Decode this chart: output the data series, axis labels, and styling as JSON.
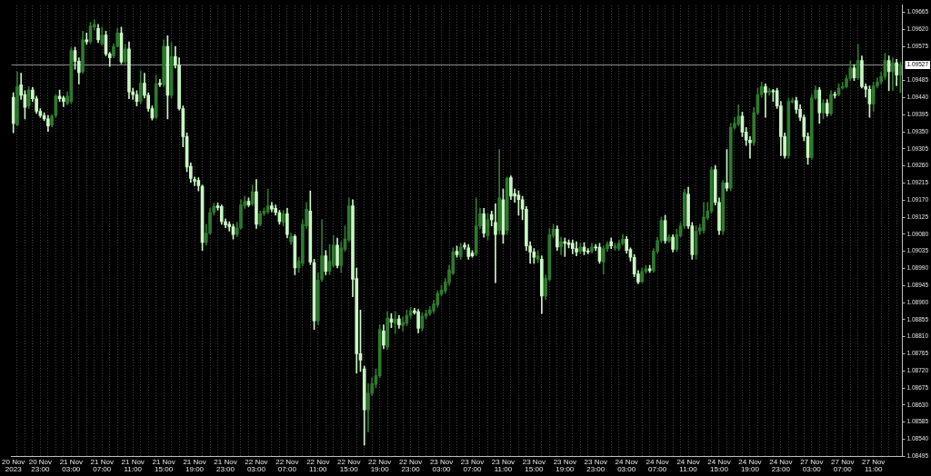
{
  "chart_data": {
    "type": "candlestick",
    "categories": [
      "20 Nov 2023",
      null,
      null,
      null,
      null,
      null,
      null,
      "20 Nov 23:00",
      null,
      null,
      null,
      null,
      null,
      null,
      null,
      "21 Nov 03:00",
      null,
      null,
      null,
      null,
      null,
      null,
      null,
      "21 Nov 07:00",
      null,
      null,
      null,
      null,
      null,
      null,
      null,
      "21 Nov 11:00",
      null,
      null,
      null,
      null,
      null,
      null,
      null,
      "21 Nov 15:00",
      null,
      null,
      null,
      null,
      null,
      null,
      null,
      "21 Nov 19:00",
      null,
      null,
      null,
      null,
      null,
      null,
      null,
      "21 Nov 23:00",
      null,
      null,
      null,
      null,
      null,
      null,
      null,
      "22 Nov 03:00",
      null,
      null,
      null,
      null,
      null,
      null,
      null,
      "22 Nov 07:00",
      null,
      null,
      null,
      null,
      null,
      null,
      null,
      "22 Nov 11:00",
      null,
      null,
      null,
      null,
      null,
      null,
      null,
      "22 Nov 15:00",
      null,
      null,
      null,
      null,
      null,
      null,
      null,
      "22 Nov 19:00",
      null,
      null,
      null,
      null,
      null,
      null,
      null,
      "22 Nov 23:00",
      null,
      null,
      null,
      null,
      null,
      null,
      null,
      "23 Nov 03:00",
      null,
      null,
      null,
      null,
      null,
      null,
      null,
      "23 Nov 07:00",
      null,
      null,
      null,
      null,
      null,
      null,
      null,
      "23 Nov 11:00",
      null,
      null,
      null,
      null,
      null,
      null,
      null,
      "23 Nov 15:00",
      null,
      null,
      null,
      null,
      null,
      null,
      null,
      "23 Nov 19:00",
      null,
      null,
      null,
      null,
      null,
      null,
      null,
      "23 Nov 23:00",
      null,
      null,
      null,
      null,
      null,
      null,
      null,
      "24 Nov 03:00",
      null,
      null,
      null,
      null,
      null,
      null,
      null,
      "24 Nov 07:00",
      null,
      null,
      null,
      null,
      null,
      null,
      null,
      "24 Nov 11:00",
      null,
      null,
      null,
      null,
      null,
      null,
      null,
      "24 Nov 15:00",
      null,
      null,
      null,
      null,
      null,
      null,
      null,
      "24 Nov 19:00",
      null,
      null,
      null,
      null,
      null,
      null,
      null,
      "24 Nov 23:00",
      null,
      null,
      null,
      null,
      null,
      null,
      null,
      "27 Nov 03:00",
      null,
      null,
      null,
      null,
      null,
      null,
      null,
      "27 Nov 07:00",
      null,
      null,
      null,
      null,
      null,
      null,
      null,
      "27 Nov 11:00",
      null,
      null,
      null,
      null,
      null,
      null,
      null
    ],
    "ohlc": [
      [
        1.09441,
        1.09453,
        1.09347,
        1.09372
      ],
      [
        1.09368,
        1.09508,
        1.09365,
        1.09469
      ],
      [
        1.09474,
        1.09504,
        1.09435,
        1.09446
      ],
      [
        1.09448,
        1.09458,
        1.09384,
        1.09414
      ],
      [
        1.09418,
        1.09469,
        1.09411,
        1.0946
      ],
      [
        1.0946,
        1.09467,
        1.0943,
        1.09437
      ],
      [
        1.09437,
        1.09444,
        1.09398,
        1.09404
      ],
      [
        1.09404,
        1.09411,
        1.09388,
        1.09393
      ],
      [
        1.09393,
        1.094,
        1.09379,
        1.09384
      ],
      [
        1.09384,
        1.09393,
        1.09351,
        1.09365
      ],
      [
        1.09368,
        1.09395,
        1.09363,
        1.09391
      ],
      [
        1.09393,
        1.09448,
        1.09388,
        1.09444
      ],
      [
        1.09444,
        1.0946,
        1.0943,
        1.09437
      ],
      [
        1.09439,
        1.09444,
        1.09416,
        1.0943
      ],
      [
        1.09425,
        1.09455,
        1.09421,
        1.09444
      ],
      [
        1.0943,
        1.09571,
        1.09425,
        1.09564
      ],
      [
        1.09564,
        1.09573,
        1.09515,
        1.09536
      ],
      [
        1.09536,
        1.09545,
        1.09476,
        1.09506
      ],
      [
        1.09508,
        1.09615,
        1.09504,
        1.09592
      ],
      [
        1.09592,
        1.0961,
        1.0958,
        1.09587
      ],
      [
        1.09587,
        1.09638,
        1.09582,
        1.09629
      ],
      [
        1.09626,
        1.09645,
        1.09619,
        1.09633
      ],
      [
        1.09622,
        1.09633,
        1.09585,
        1.09592
      ],
      [
        1.09582,
        1.09626,
        1.09578,
        1.09605
      ],
      [
        1.09605,
        1.09615,
        1.0955,
        1.09555
      ],
      [
        1.09555,
        1.09559,
        1.09522,
        1.09545
      ],
      [
        1.0955,
        1.09582,
        1.09545,
        1.09575
      ],
      [
        1.09575,
        1.09622,
        1.09573,
        1.0961
      ],
      [
        1.0961,
        1.09626,
        1.09529,
        1.09534
      ],
      [
        1.09534,
        1.0958,
        1.09527,
        1.09568
      ],
      [
        1.09568,
        1.09587,
        1.09437,
        1.09455
      ],
      [
        1.09455,
        1.09465,
        1.09435,
        1.09448
      ],
      [
        1.09448,
        1.09458,
        1.09418,
        1.0943
      ],
      [
        1.0943,
        1.09511,
        1.09425,
        1.09478
      ],
      [
        1.09478,
        1.09504,
        1.09439,
        1.09446
      ],
      [
        1.09446,
        1.09453,
        1.09404,
        1.09411
      ],
      [
        1.09411,
        1.09418,
        1.09381,
        1.09386
      ],
      [
        1.09388,
        1.09499,
        1.09384,
        1.09476
      ],
      [
        1.09478,
        1.09488,
        1.09469,
        1.09474
      ],
      [
        1.09474,
        1.09592,
        1.09469,
        1.09575
      ],
      [
        1.09575,
        1.09603,
        1.09384,
        1.09446
      ],
      [
        1.09446,
        1.09585,
        1.09439,
        1.09548
      ],
      [
        1.09548,
        1.09575,
        1.09518,
        1.09525
      ],
      [
        1.09525,
        1.09545,
        1.09407,
        1.09411
      ],
      [
        1.09411,
        1.09418,
        1.0931,
        1.09337
      ],
      [
        1.09337,
        1.09347,
        1.09245,
        1.09257
      ],
      [
        1.09259,
        1.09268,
        1.09217,
        1.09227
      ],
      [
        1.09224,
        1.09231,
        1.09208,
        1.0922
      ],
      [
        1.09222,
        1.09229,
        1.09194,
        1.09208
      ],
      [
        1.09206,
        1.0921,
        1.09037,
        1.09058
      ],
      [
        1.09058,
        1.09106,
        1.09051,
        1.09083
      ],
      [
        1.09083,
        1.09148,
        1.09079,
        1.09137
      ],
      [
        1.09137,
        1.09162,
        1.0913,
        1.09153
      ],
      [
        1.09155,
        1.09162,
        1.09143,
        1.0915
      ],
      [
        1.09153,
        1.09157,
        1.09106,
        1.09113
      ],
      [
        1.09113,
        1.0912,
        1.09097,
        1.09104
      ],
      [
        1.09106,
        1.09113,
        1.09088,
        1.091
      ],
      [
        1.091,
        1.09106,
        1.09067,
        1.09079
      ],
      [
        1.09079,
        1.09111,
        1.09074,
        1.09097
      ],
      [
        1.09097,
        1.09171,
        1.09093,
        1.09157
      ],
      [
        1.09155,
        1.0918,
        1.09148,
        1.09167
      ],
      [
        1.09167,
        1.09176,
        1.09153,
        1.09157
      ],
      [
        1.0916,
        1.0921,
        1.09155,
        1.09192
      ],
      [
        1.09192,
        1.09224,
        1.09095,
        1.09106
      ],
      [
        1.09106,
        1.09141,
        1.09102,
        1.09134
      ],
      [
        1.09134,
        1.09148,
        1.0913,
        1.09141
      ],
      [
        1.09139,
        1.09199,
        1.09134,
        1.09155
      ],
      [
        1.09155,
        1.09164,
        1.09139,
        1.09146
      ],
      [
        1.09148,
        1.09157,
        1.0913,
        1.09137
      ],
      [
        1.09137,
        1.09143,
        1.09106,
        1.09113
      ],
      [
        1.09111,
        1.09143,
        1.09102,
        1.09134
      ],
      [
        1.09134,
        1.09148,
        1.0907,
        1.09079
      ],
      [
        1.0906,
        1.09083,
        1.09053,
        1.09074
      ],
      [
        1.09074,
        1.09079,
        1.08973,
        1.08991
      ],
      [
        1.08991,
        1.09019,
        1.08979,
        1.09009
      ],
      [
        1.09003,
        1.09118,
        1.08996,
        1.09106
      ],
      [
        1.09102,
        1.09164,
        1.09095,
        1.09146
      ],
      [
        1.09141,
        1.09194,
        1.09,
        1.09007
      ],
      [
        1.09005,
        1.09014,
        1.08829,
        1.08852
      ],
      [
        1.08852,
        1.08979,
        1.08841,
        1.08959
      ],
      [
        1.08961,
        1.09118,
        1.08956,
        1.09023
      ],
      [
        1.09023,
        1.09037,
        1.08973,
        1.08982
      ],
      [
        1.08982,
        1.09053,
        1.08973,
        1.09009
      ],
      [
        1.08998,
        1.09076,
        1.08993,
        1.09051
      ],
      [
        1.09051,
        1.0907,
        1.08991,
        1.08998
      ],
      [
        1.08998,
        1.0906,
        1.08979,
        1.09044
      ],
      [
        1.0904,
        1.09102,
        1.09035,
        1.09067
      ],
      [
        1.09065,
        1.09176,
        1.0906,
        1.09155
      ],
      [
        1.09155,
        1.09171,
        1.08915,
        1.08961
      ],
      [
        1.08963,
        1.08991,
        1.08714,
        1.08765
      ],
      [
        1.08765,
        1.0888,
        1.08718,
        1.08748
      ],
      [
        1.08725,
        1.08732,
        1.08524,
        1.08617
      ],
      [
        1.08617,
        1.08686,
        1.08559,
        1.08661
      ],
      [
        1.08661,
        1.08702,
        1.08654,
        1.08686
      ],
      [
        1.08684,
        1.08725,
        1.08675,
        1.08707
      ],
      [
        1.08707,
        1.08841,
        1.08702,
        1.08829
      ],
      [
        1.08825,
        1.08841,
        1.08778,
        1.08788
      ],
      [
        1.08783,
        1.08876,
        1.08776,
        1.08859
      ],
      [
        1.08857,
        1.08871,
        1.08834,
        1.08848
      ],
      [
        1.08845,
        1.08876,
        1.08818,
        1.08857
      ],
      [
        1.08857,
        1.08866,
        1.08832,
        1.08841
      ],
      [
        1.08839,
        1.08862,
        1.08825,
        1.08848
      ],
      [
        1.08845,
        1.0888,
        1.08839,
        1.08866
      ],
      [
        1.08866,
        1.08887,
        1.08859,
        1.08878
      ],
      [
        1.08878,
        1.08885,
        1.08869,
        1.08873
      ],
      [
        1.08876,
        1.08882,
        1.0882,
        1.08832
      ],
      [
        1.08832,
        1.08873,
        1.08825,
        1.08864
      ],
      [
        1.08864,
        1.0888,
        1.08857,
        1.08871
      ],
      [
        1.08871,
        1.08889,
        1.08866,
        1.0888
      ],
      [
        1.08878,
        1.08906,
        1.08873,
        1.08896
      ],
      [
        1.08894,
        1.08931,
        1.08887,
        1.08924
      ],
      [
        1.08922,
        1.08945,
        1.08917,
        1.08933
      ],
      [
        1.08931,
        1.08963,
        1.08924,
        1.08954
      ],
      [
        1.08952,
        1.08998,
        1.08945,
        1.08986
      ],
      [
        1.08977,
        1.09044,
        1.08973,
        1.09033
      ],
      [
        1.09035,
        1.09049,
        1.09019,
        1.09026
      ],
      [
        1.09021,
        1.09056,
        1.09014,
        1.09046
      ],
      [
        1.09051,
        1.09058,
        1.0904,
        1.09046
      ],
      [
        1.09044,
        1.09053,
        1.09014,
        1.09021
      ],
      [
        1.0903,
        1.09037,
        1.09019,
        1.09023
      ],
      [
        1.09028,
        1.09176,
        1.09023,
        1.09102
      ],
      [
        1.09102,
        1.09148,
        1.09095,
        1.09134
      ],
      [
        1.09134,
        1.09148,
        1.09072,
        1.09083
      ],
      [
        1.09076,
        1.09134,
        1.09065,
        1.09118
      ],
      [
        1.09132,
        1.09141,
        1.09102,
        1.09118
      ],
      [
        1.09111,
        1.0916,
        1.08952,
        1.09079
      ],
      [
        1.0909,
        1.09303,
        1.09079,
        1.09176
      ],
      [
        1.09171,
        1.09199,
        1.09056,
        1.09079
      ],
      [
        1.0909,
        1.09231,
        1.09079,
        1.09227
      ],
      [
        1.09229,
        1.09234,
        1.09171,
        1.0918
      ],
      [
        1.09187,
        1.09199,
        1.09164,
        1.0918
      ],
      [
        1.09183,
        1.09194,
        1.0913,
        1.09171
      ],
      [
        1.09171,
        1.0918,
        1.09118,
        1.09146
      ],
      [
        1.09146,
        1.09153,
        1.09037,
        1.09049
      ],
      [
        1.09049,
        1.0906,
        1.09003,
        1.09033
      ],
      [
        1.09033,
        1.09042,
        1.09003,
        1.09019
      ],
      [
        1.09014,
        1.09037,
        1.09005,
        1.09023
      ],
      [
        1.09014,
        1.09023,
        1.08871,
        1.08917
      ],
      [
        1.08917,
        1.08973,
        1.08908,
        1.08963
      ],
      [
        1.08961,
        1.09095,
        1.08956,
        1.09079
      ],
      [
        1.09076,
        1.09106,
        1.0907,
        1.09093
      ],
      [
        1.09093,
        1.09102,
        1.09037,
        1.09046
      ],
      [
        1.09046,
        1.09072,
        1.09026,
        1.0906
      ],
      [
        1.0906,
        1.0907,
        1.09021,
        1.09056
      ],
      [
        1.09058,
        1.09065,
        1.09044,
        1.09053
      ],
      [
        1.09056,
        1.09065,
        1.09028,
        1.09042
      ],
      [
        1.09042,
        1.0906,
        1.09023,
        1.09033
      ],
      [
        1.09035,
        1.09056,
        1.09028,
        1.09046
      ],
      [
        1.09046,
        1.09058,
        1.09026,
        1.09035
      ],
      [
        1.09035,
        1.09042,
        1.09028,
        1.09033
      ],
      [
        1.09035,
        1.09056,
        1.0903,
        1.09046
      ],
      [
        1.09046,
        1.09053,
        1.09037,
        1.09044
      ],
      [
        1.09046,
        1.09056,
        1.09003,
        1.09009
      ],
      [
        1.09007,
        1.09049,
        1.08975,
        1.09042
      ],
      [
        1.09042,
        1.0906,
        1.09035,
        1.09053
      ],
      [
        1.0906,
        1.0907,
        1.09042,
        1.09049
      ],
      [
        1.09044,
        1.09056,
        1.09037,
        1.09049
      ],
      [
        1.09042,
        1.09065,
        1.09037,
        1.09056
      ],
      [
        1.09056,
        1.09079,
        1.09051,
        1.09067
      ],
      [
        1.09067,
        1.09074,
        1.0903,
        1.09037
      ],
      [
        1.0904,
        1.09044,
        1.09009,
        1.09019
      ],
      [
        1.09019,
        1.09026,
        1.08968,
        1.08975
      ],
      [
        1.08975,
        1.08984,
        1.08949,
        1.08954
      ],
      [
        1.08954,
        1.08991,
        1.08952,
        1.08982
      ],
      [
        1.08982,
        1.08998,
        1.08977,
        1.08989
      ],
      [
        1.08989,
        1.08998,
        1.08979,
        1.08984
      ],
      [
        1.08984,
        1.09042,
        1.08979,
        1.09035
      ],
      [
        1.09035,
        1.09072,
        1.0903,
        1.09063
      ],
      [
        1.09063,
        1.09125,
        1.09058,
        1.09116
      ],
      [
        1.09116,
        1.0913,
        1.09056,
        1.09063
      ],
      [
        1.09063,
        1.09079,
        1.09058,
        1.09072
      ],
      [
        1.09072,
        1.09079,
        1.09033,
        1.0904
      ],
      [
        1.0904,
        1.09093,
        1.09035,
        1.09079
      ],
      [
        1.09076,
        1.09111,
        1.09072,
        1.09102
      ],
      [
        1.09102,
        1.09199,
        1.09095,
        1.0919
      ],
      [
        1.09185,
        1.09204,
        1.09095,
        1.09102
      ],
      [
        1.09102,
        1.09111,
        1.09014,
        1.09026
      ],
      [
        1.09026,
        1.09102,
        1.09014,
        1.09088
      ],
      [
        1.09088,
        1.09106,
        1.09079,
        1.09097
      ],
      [
        1.0909,
        1.09164,
        1.09083,
        1.09125
      ],
      [
        1.09123,
        1.09164,
        1.09118,
        1.09141
      ],
      [
        1.09141,
        1.09257,
        1.09134,
        1.0925
      ],
      [
        1.0925,
        1.09261,
        1.09157,
        1.09164
      ],
      [
        1.09164,
        1.09176,
        1.09079,
        1.0909
      ],
      [
        1.09088,
        1.09222,
        1.09079,
        1.09215
      ],
      [
        1.09215,
        1.09303,
        1.09194,
        1.09201
      ],
      [
        1.09201,
        1.09372,
        1.09194,
        1.09361
      ],
      [
        1.09361,
        1.09388,
        1.09356,
        1.09372
      ],
      [
        1.0937,
        1.09421,
        1.09365,
        1.09391
      ],
      [
        1.09391,
        1.09402,
        1.09337,
        1.09349
      ],
      [
        1.09349,
        1.09361,
        1.09314,
        1.09328
      ],
      [
        1.09328,
        1.09337,
        1.0928,
        1.09321
      ],
      [
        1.09321,
        1.09414,
        1.09314,
        1.094
      ],
      [
        1.094,
        1.09465,
        1.09395,
        1.09448
      ],
      [
        1.09448,
        1.09481,
        1.09441,
        1.09469
      ],
      [
        1.09469,
        1.09476,
        1.09388,
        1.09453
      ],
      [
        1.09453,
        1.09465,
        1.09446,
        1.09458
      ],
      [
        1.09458,
        1.09462,
        1.0943,
        1.09455
      ],
      [
        1.09458,
        1.09465,
        1.09411,
        1.09418
      ],
      [
        1.09418,
        1.0943,
        1.09287,
        1.09337
      ],
      [
        1.09337,
        1.09347,
        1.0928,
        1.09287
      ],
      [
        1.09287,
        1.09439,
        1.0928,
        1.0943
      ],
      [
        1.09428,
        1.09439,
        1.09425,
        1.09432
      ],
      [
        1.09432,
        1.09441,
        1.09398,
        1.09409
      ],
      [
        1.09409,
        1.09421,
        1.09379,
        1.09388
      ],
      [
        1.09388,
        1.09395,
        1.09326,
        1.09337
      ],
      [
        1.09337,
        1.09347,
        1.09264,
        1.09282
      ],
      [
        1.09282,
        1.09448,
        1.09277,
        1.09439
      ],
      [
        1.09439,
        1.09471,
        1.09435,
        1.0946
      ],
      [
        1.0946,
        1.09467,
        1.09372,
        1.094
      ],
      [
        1.094,
        1.09435,
        1.09384,
        1.09425
      ],
      [
        1.09425,
        1.09435,
        1.09391,
        1.09398
      ],
      [
        1.09398,
        1.09458,
        1.09393,
        1.09448
      ],
      [
        1.09448,
        1.09455,
        1.09439,
        1.09446
      ],
      [
        1.09448,
        1.09476,
        1.09444,
        1.09465
      ],
      [
        1.09465,
        1.09481,
        1.09462,
        1.09469
      ],
      [
        1.09469,
        1.09499,
        1.09465,
        1.0949
      ],
      [
        1.0949,
        1.09536,
        1.09485,
        1.09518
      ],
      [
        1.09518,
        1.09527,
        1.09485,
        1.09492
      ],
      [
        1.09492,
        1.0958,
        1.09488,
        1.09538
      ],
      [
        1.09538,
        1.0955,
        1.09465,
        1.09469
      ],
      [
        1.09469,
        1.09476,
        1.09441,
        1.09462
      ],
      [
        1.09462,
        1.09471,
        1.09388,
        1.09423
      ],
      [
        1.09423,
        1.09481,
        1.09404,
        1.09471
      ],
      [
        1.09471,
        1.09492,
        1.09465,
        1.09481
      ],
      [
        1.09481,
        1.09508,
        1.09476,
        1.09495
      ],
      [
        1.09495,
        1.09557,
        1.09488,
        1.09538
      ],
      [
        1.09538,
        1.0955,
        1.09458,
        1.09508
      ],
      [
        1.09508,
        1.09545,
        1.09458,
        1.09532
      ],
      [
        1.09532,
        1.09541,
        1.09471,
        1.09499
      ],
      [
        1.09499,
        1.09534,
        1.09453,
        1.09527
      ]
    ],
    "colors": [
      "#c9f7c3",
      "#2e7a2e",
      "#c9f7c3",
      "#c9f7c3",
      "#2e7a2e",
      "#c9f7c3",
      "#c9f7c3",
      "#c9f7c3",
      "#c9f7c3",
      "#c9f7c3",
      "#2e7a2e",
      "#2e7a2e",
      "#c9f7c3",
      "#c9f7c3",
      "#2e7a2e",
      "#2e7a2e",
      "#c9f7c3",
      "#c9f7c3",
      "#2e7a2e",
      "#c9f7c3",
      "#2e7a2e",
      "#2e7a2e",
      "#c9f7c3",
      "#2e7a2e",
      "#c9f7c3",
      "#c9f7c3",
      "#2e7a2e",
      "#2e7a2e",
      "#c9f7c3",
      "#2e7a2e",
      "#c9f7c3",
      "#c9f7c3",
      "#c9f7c3",
      "#2e7a2e",
      "#c9f7c3",
      "#c9f7c3",
      "#c9f7c3",
      "#2e7a2e",
      "#c9f7c3",
      "#2e7a2e",
      "#c9f7c3",
      "#2e7a2e",
      "#c9f7c3",
      "#c9f7c3",
      "#c9f7c3",
      "#c9f7c3",
      "#c9f7c3",
      "#c9f7c3",
      "#c9f7c3",
      "#c9f7c3",
      "#2e7a2e",
      "#2e7a2e",
      "#2e7a2e",
      "#c9f7c3",
      "#c9f7c3",
      "#c9f7c3",
      "#c9f7c3",
      "#c9f7c3",
      "#2e7a2e",
      "#2e7a2e",
      "#2e7a2e",
      "#c9f7c3",
      "#2e7a2e",
      "#c9f7c3",
      "#2e7a2e",
      "#2e7a2e",
      "#2e7a2e",
      "#c9f7c3",
      "#c9f7c3",
      "#c9f7c3",
      "#2e7a2e",
      "#c9f7c3",
      "#2e7a2e",
      "#c9f7c3",
      "#2e7a2e",
      "#2e7a2e",
      "#2e7a2e",
      "#c9f7c3",
      "#c9f7c3",
      "#2e7a2e",
      "#2e7a2e",
      "#c9f7c3",
      "#2e7a2e",
      "#2e7a2e",
      "#c9f7c3",
      "#2e7a2e",
      "#2e7a2e",
      "#2e7a2e",
      "#c9f7c3",
      "#c9f7c3",
      "#c9f7c3",
      "#c9f7c3",
      "#2e7a2e",
      "#2e7a2e",
      "#2e7a2e",
      "#2e7a2e",
      "#c9f7c3",
      "#2e7a2e",
      "#c9f7c3",
      "#2e7a2e",
      "#c9f7c3",
      "#2e7a2e",
      "#2e7a2e",
      "#2e7a2e",
      "#c9f7c3",
      "#c9f7c3",
      "#2e7a2e",
      "#2e7a2e",
      "#2e7a2e",
      "#2e7a2e",
      "#2e7a2e",
      "#2e7a2e",
      "#2e7a2e",
      "#2e7a2e",
      "#2e7a2e",
      "#c9f7c3",
      "#2e7a2e",
      "#c9f7c3",
      "#c9f7c3",
      "#c9f7c3",
      "#2e7a2e",
      "#2e7a2e",
      "#c9f7c3",
      "#2e7a2e",
      "#c9f7c3",
      "#c9f7c3",
      "#2e7a2e",
      "#c9f7c3",
      "#2e7a2e",
      "#c9f7c3",
      "#c9f7c3",
      "#c9f7c3",
      "#c9f7c3",
      "#c9f7c3",
      "#c9f7c3",
      "#c9f7c3",
      "#2e7a2e",
      "#c9f7c3",
      "#2e7a2e",
      "#2e7a2e",
      "#2e7a2e",
      "#c9f7c3",
      "#2e7a2e",
      "#c9f7c3",
      "#c9f7c3",
      "#c9f7c3",
      "#c9f7c3",
      "#2e7a2e",
      "#c9f7c3",
      "#c9f7c3",
      "#2e7a2e",
      "#c9f7c3",
      "#c9f7c3",
      "#2e7a2e",
      "#2e7a2e",
      "#c9f7c3",
      "#2e7a2e",
      "#2e7a2e",
      "#2e7a2e",
      "#c9f7c3",
      "#c9f7c3",
      "#c9f7c3",
      "#c9f7c3",
      "#2e7a2e",
      "#2e7a2e",
      "#c9f7c3",
      "#2e7a2e",
      "#2e7a2e",
      "#2e7a2e",
      "#c9f7c3",
      "#2e7a2e",
      "#c9f7c3",
      "#2e7a2e",
      "#2e7a2e",
      "#2e7a2e",
      "#c9f7c3",
      "#c9f7c3",
      "#2e7a2e",
      "#2e7a2e",
      "#2e7a2e",
      "#2e7a2e",
      "#2e7a2e",
      "#c9f7c3",
      "#c9f7c3",
      "#2e7a2e",
      "#c9f7c3",
      "#2e7a2e",
      "#2e7a2e",
      "#2e7a2e",
      "#c9f7c3",
      "#c9f7c3",
      "#c9f7c3",
      "#2e7a2e",
      "#2e7a2e",
      "#2e7a2e",
      "#c9f7c3",
      "#2e7a2e",
      "#c9f7c3",
      "#c9f7c3",
      "#c9f7c3",
      "#c9f7c3",
      "#2e7a2e",
      "#2e7a2e",
      "#c9f7c3",
      "#c9f7c3",
      "#c9f7c3",
      "#c9f7c3",
      "#2e7a2e",
      "#2e7a2e",
      "#c9f7c3",
      "#2e7a2e",
      "#c9f7c3",
      "#2e7a2e",
      "#c9f7c3",
      "#2e7a2e",
      "#2e7a2e",
      "#2e7a2e",
      "#2e7a2e",
      "#c9f7c3",
      "#2e7a2e",
      "#c9f7c3",
      "#c9f7c3",
      "#c9f7c3",
      "#2e7a2e",
      "#2e7a2e",
      "#2e7a2e",
      "#2e7a2e",
      "#c9f7c3",
      "#2e7a2e",
      "#c9f7c3",
      "#2e7a2e"
    ],
    "ylim": [
      1.08495,
      1.09683
    ],
    "yticks": [
      1.09665,
      {
        "value": 1.0962,
        "label": "1.09620"
      },
      1.09575,
      1.09485,
      {
        "value": 1.0944,
        "label": "1.09440"
      },
      1.09395,
      {
        "value": 1.0935,
        "label": "1.09350"
      },
      1.09305,
      {
        "value": 1.0926,
        "label": "1.09260"
      },
      1.09215,
      {
        "value": 1.0917,
        "label": "1.09170"
      },
      1.09125,
      {
        "value": 1.0908,
        "label": "1.09080"
      },
      1.09035,
      {
        "value": 1.0899,
        "label": "1.08990"
      },
      1.08945,
      {
        "value": 1.089,
        "label": "1.08900"
      },
      1.08855,
      {
        "value": 1.0881,
        "label": "1.08810"
      },
      1.08765,
      {
        "value": 1.0872,
        "label": "1.08720"
      },
      1.08675,
      {
        "value": 1.0863,
        "label": "1.08630"
      },
      1.08585,
      {
        "value": 1.0854,
        "label": "1.08540"
      },
      1.08495
    ],
    "ref_lines": [
      {
        "axis": "y",
        "value": 1.09527,
        "label": "1.09527",
        "color": "#8c8c8c"
      }
    ],
    "grid": "x"
  }
}
